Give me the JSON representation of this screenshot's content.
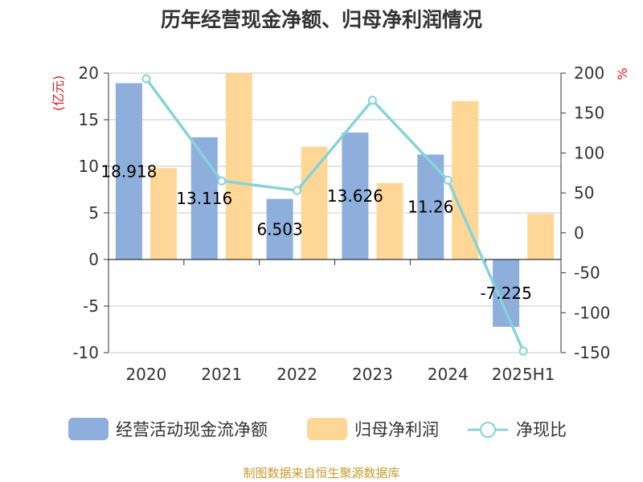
{
  "chart_data": {
    "type": "bar",
    "title": "历年经营现金净额、归母净利润情况",
    "categories": [
      "2020",
      "2021",
      "2022",
      "2023",
      "2024",
      "2025H1"
    ],
    "series": [
      {
        "name": "经营活动现金流净额",
        "type": "bar",
        "axis": "left",
        "values": [
          18.918,
          13.116,
          6.503,
          13.626,
          11.26,
          -7.225
        ],
        "data_labels": [
          "18.918",
          "13.116",
          "6.503",
          "13.626",
          "11.26",
          "-7.225"
        ]
      },
      {
        "name": "归母净利润",
        "type": "bar",
        "axis": "left",
        "values": [
          9.8,
          20.0,
          12.1,
          8.2,
          17.0,
          4.9
        ]
      },
      {
        "name": "净现比",
        "type": "line",
        "axis": "right",
        "values": [
          193,
          65,
          53,
          166,
          66,
          -148
        ]
      }
    ],
    "left_axis": {
      "unit": "(亿元)",
      "ylim": [
        -10,
        20
      ],
      "ticks": [
        -10,
        -5,
        0,
        5,
        10,
        15,
        20
      ]
    },
    "right_axis": {
      "unit": "%",
      "ylim": [
        -150,
        200
      ],
      "ticks": [
        -150,
        -100,
        -50,
        0,
        50,
        100,
        150,
        200
      ]
    },
    "grid": true,
    "legend_position": "bottom",
    "colors": {
      "bar1": "#8eaedc",
      "bar2": "#fed797",
      "line": "#88d3d8",
      "unit": "#e0191d",
      "source": "#c99a2e"
    },
    "source": "制图数据来自恒生聚源数据库"
  }
}
